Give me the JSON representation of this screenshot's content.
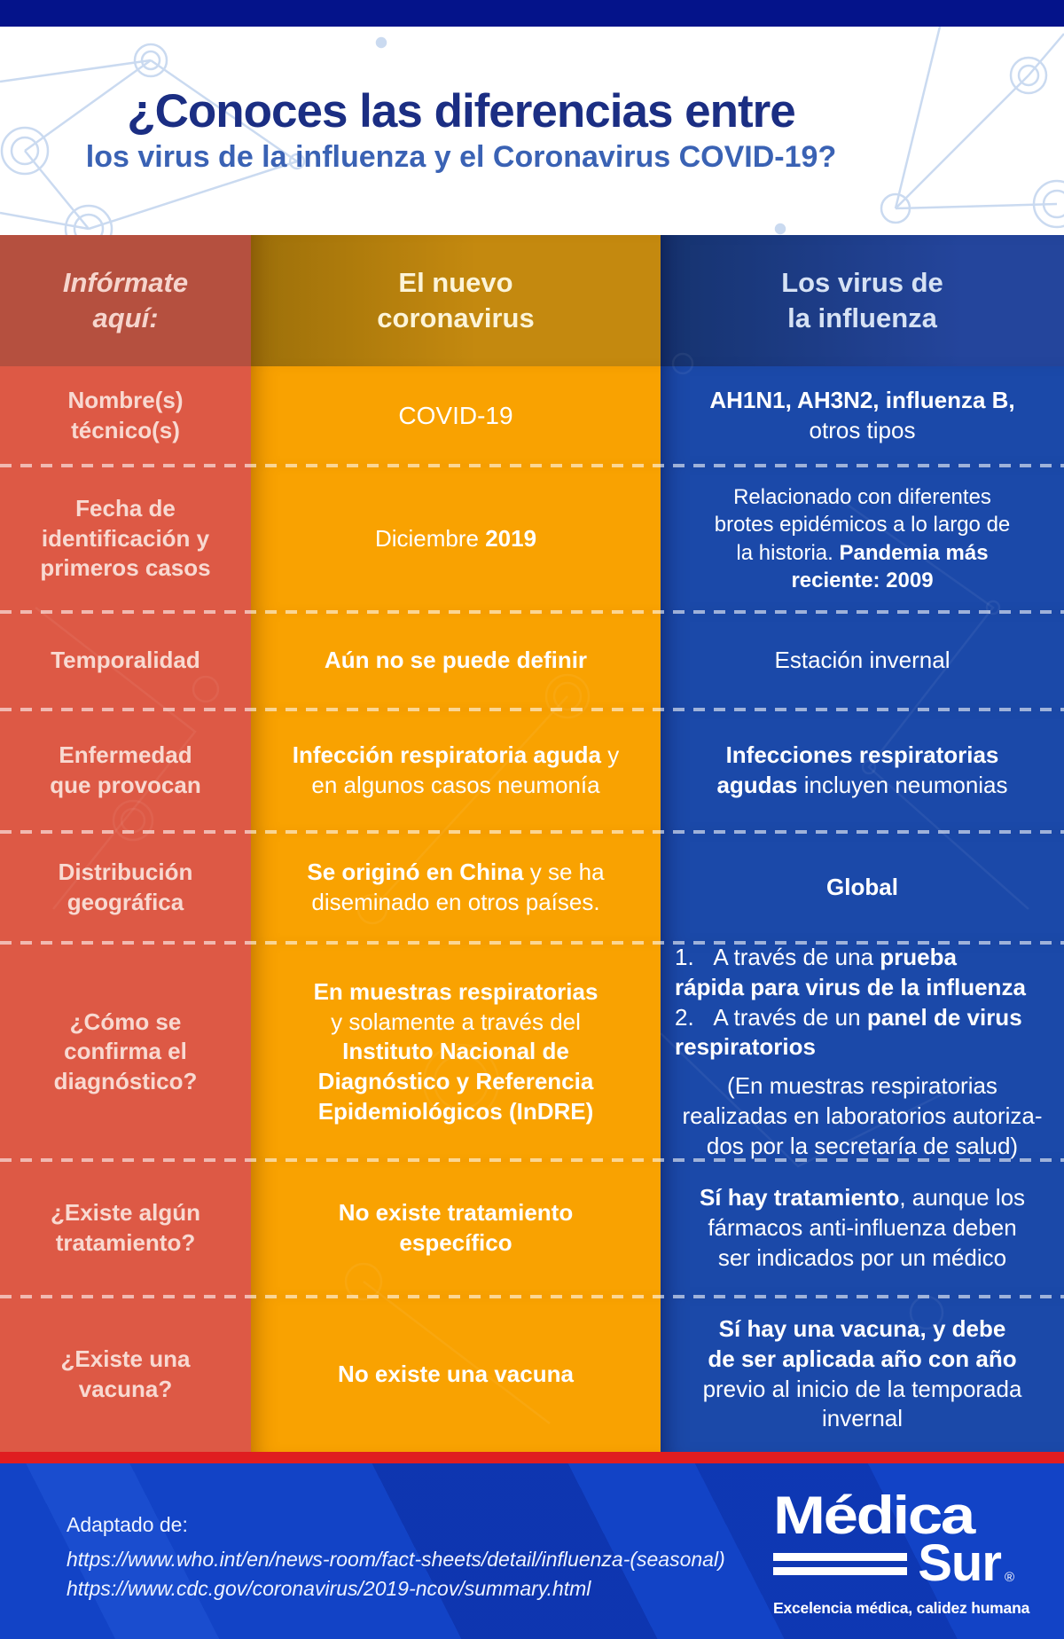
{
  "colors": {
    "topbar": "#04138a",
    "title_navy": "#1b2e83",
    "title_blue": "#3a62b4",
    "red": "#dd5945",
    "red_dark": "#b5503f",
    "orange": "#f9a201",
    "orange_dark": "#c4890f",
    "blue": "#1b49a9",
    "divider_red": "#e01d20",
    "footer_blue": "#1243c6"
  },
  "header": {
    "title_line1": "¿Conoces las diferencias entre",
    "title_line2": "los virus de la influenza y el Coronavirus COVID-19?"
  },
  "table": {
    "column_headers": {
      "info": "Infórmate\naquí:",
      "covid": "El nuevo\ncoronavirus",
      "flu": "Los virus de\nla influenza"
    },
    "rows": [
      {
        "label": "Nombre(s)\ntécnico(s)",
        "covid": [
          {
            "kind": "para",
            "segs": [
              {
                "t": "COVID-19",
                "w": "r"
              }
            ]
          }
        ],
        "flu": [
          {
            "kind": "para",
            "segs": [
              {
                "t": "AH1N1, AH3N2, influenza B,",
                "w": "b"
              },
              {
                "t": "\notros tipos",
                "w": "l"
              }
            ]
          }
        ]
      },
      {
        "label": "Fecha de\nidentificación y\nprimeros casos",
        "covid": [
          {
            "kind": "para",
            "segs": [
              {
                "t": "Diciembre ",
                "w": "l"
              },
              {
                "t": "2019",
                "w": "b"
              }
            ]
          }
        ],
        "flu": [
          {
            "kind": "para",
            "segs": [
              {
                "t": "Relacionado con diferentes\nbrotes epidémicos a lo largo de\nla historia. ",
                "w": "l"
              },
              {
                "t": "Pandemia más\nreciente: 2009",
                "w": "b"
              }
            ]
          }
        ]
      },
      {
        "label": "Temporalidad",
        "covid": [
          {
            "kind": "para",
            "segs": [
              {
                "t": "Aún no se puede definir",
                "w": "b"
              }
            ]
          }
        ],
        "flu": [
          {
            "kind": "para",
            "segs": [
              {
                "t": "Estación invernal",
                "w": "l"
              }
            ]
          }
        ]
      },
      {
        "label": "Enfermedad\nque provocan",
        "covid": [
          {
            "kind": "para",
            "segs": [
              {
                "t": "Infección respiratoria aguda",
                "w": "b"
              },
              {
                "t": " y\nen algunos casos neumonía",
                "w": "l"
              }
            ]
          }
        ],
        "flu": [
          {
            "kind": "para",
            "segs": [
              {
                "t": "Infecciones respiratorias\nagudas",
                "w": "b"
              },
              {
                "t": " incluyen neumonias",
                "w": "l"
              }
            ]
          }
        ]
      },
      {
        "label": "Distribución\ngeográfica",
        "covid": [
          {
            "kind": "para",
            "segs": [
              {
                "t": "Se originó en China",
                "w": "b"
              },
              {
                "t": " y se ha\ndiseminado en otros países.",
                "w": "l"
              }
            ]
          }
        ],
        "flu": [
          {
            "kind": "para",
            "segs": [
              {
                "t": "Global",
                "w": "b"
              }
            ]
          }
        ]
      },
      {
        "label": "¿Cómo se\nconfirma el\ndiagnóstico?",
        "covid": [
          {
            "kind": "para",
            "segs": [
              {
                "t": "En muestras respiratorias",
                "w": "b"
              },
              {
                "t": "\ny solamente a través del\n",
                "w": "l"
              },
              {
                "t": "Instituto Nacional de\nDiagnóstico y Referencia\nEpidemiológicos (InDRE)",
                "w": "b"
              }
            ]
          }
        ],
        "flu": [
          {
            "kind": "item",
            "segs": [
              {
                "t": "1.   A través de una ",
                "w": "l"
              },
              {
                "t": "prueba\nrápida para virus de la influenza",
                "w": "b"
              }
            ]
          },
          {
            "kind": "item",
            "segs": [
              {
                "t": "2.   A través de un ",
                "w": "l"
              },
              {
                "t": "panel de virus\nrespiratorios",
                "w": "b"
              }
            ]
          },
          {
            "kind": "note",
            "segs": [
              {
                "t": "(En muestras respiratorias\nrealizadas en laboratorios autoriza-\ndos por la secretaría de salud)",
                "w": "l"
              }
            ]
          }
        ]
      },
      {
        "label": "¿Existe algún\ntratamiento?",
        "covid": [
          {
            "kind": "para",
            "segs": [
              {
                "t": "No existe tratamiento\nespecífico",
                "w": "b"
              }
            ]
          }
        ],
        "flu": [
          {
            "kind": "para",
            "segs": [
              {
                "t": "Sí hay tratamiento",
                "w": "b"
              },
              {
                "t": ", aunque los\nfármacos anti-influenza deben\nser indicados por un médico",
                "w": "l"
              }
            ]
          }
        ]
      },
      {
        "label": "¿Existe una\nvacuna?",
        "covid": [
          {
            "kind": "para",
            "segs": [
              {
                "t": "No existe una vacuna",
                "w": "b"
              }
            ]
          }
        ],
        "flu": [
          {
            "kind": "para",
            "segs": [
              {
                "t": "Sí hay una vacuna, y debe\nde ser aplicada año con año",
                "w": "b"
              },
              {
                "t": "\nprevio al inicio de la temporada\ninvernal",
                "w": "l"
              }
            ]
          }
        ]
      }
    ]
  },
  "footer": {
    "adapted_label": "Adaptado de:",
    "source_urls": [
      "https://www.who.int/en/news-room/fact-sheets/detail/influenza-(seasonal)",
      "https://www.cdc.gov/coronavirus/2019-ncov/summary.html"
    ],
    "logo": {
      "name_top": "Médica",
      "name_bottom": "Sur",
      "registered": "®",
      "tagline": "Excelencia médica, calidez humana"
    }
  }
}
